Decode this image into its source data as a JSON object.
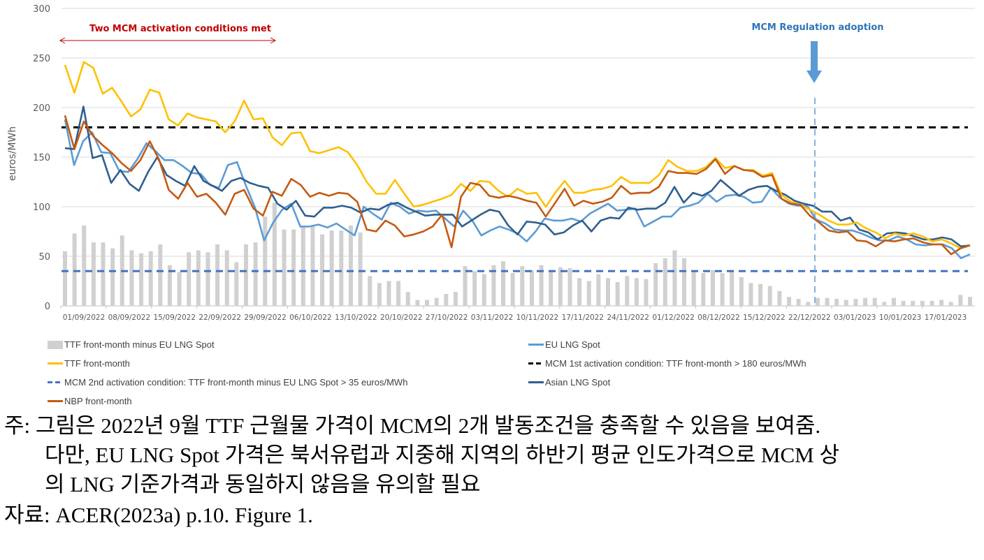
{
  "chart_data": {
    "type": "line",
    "title": "",
    "ylabel": "euros/MWh",
    "xlabel": "",
    "ylim": [
      0,
      300
    ],
    "yticks": [
      0,
      50,
      100,
      150,
      200,
      250,
      300
    ],
    "grid": true,
    "legend_position": "bottom",
    "x_tick_labels": [
      "01/09/2022",
      "08/09/2022",
      "15/09/2022",
      "22/09/2022",
      "29/09/2022",
      "06/10/2022",
      "13/10/2022",
      "20/10/2022",
      "27/10/2022",
      "03/11/2022",
      "10/11/2022",
      "17/11/2022",
      "24/11/2022",
      "01/12/2022",
      "08/12/2022",
      "15/12/2022",
      "22/12/2022",
      "03/01/2023",
      "10/01/2023",
      "17/01/2023"
    ],
    "annotations": [
      {
        "text": "Two MCM activation conditions met",
        "type": "double-arrow",
        "color": "#c00000",
        "x_start": "01/09/2022",
        "x_end": "03/10/2022"
      },
      {
        "text": "MCM Regulation adoption",
        "type": "down-arrow + vertical dashed line",
        "color": "#2e75b6",
        "x": "19/12/2022"
      }
    ],
    "reference_lines": [
      {
        "name": "MCM 1st activation condition: TTF front-month > 180 euros/MWh",
        "y": 180,
        "color": "#000000",
        "style": "dashed"
      },
      {
        "name": "MCM 2nd activation condition: TTF front-month minus EU LNG Spot > 35 euros/MWh",
        "y": 35,
        "color": "#4472c4",
        "style": "dashed"
      }
    ],
    "series": [
      {
        "name": "TTF front-month",
        "color": "#ffc000",
        "type": "line",
        "values": [
          243,
          215,
          246,
          240,
          214,
          220,
          206,
          191,
          198,
          218,
          215,
          188,
          182,
          194,
          190,
          188,
          186,
          175,
          186,
          207,
          188,
          189,
          170,
          162,
          174,
          175,
          156,
          154,
          157,
          160,
          155,
          142,
          125,
          113,
          113,
          127,
          113,
          100,
          102,
          105,
          108,
          112,
          123,
          116,
          126,
          125,
          116,
          110,
          118,
          113,
          114,
          100,
          114,
          126,
          114,
          114,
          117,
          118,
          121,
          130,
          124,
          124,
          124,
          132,
          147,
          140,
          136,
          136,
          140,
          149,
          139,
          141,
          137,
          137,
          131,
          134,
          112,
          105,
          102,
          97,
          92,
          86,
          82,
          82,
          84,
          78,
          74,
          68,
          73,
          71,
          73,
          70,
          65,
          67,
          63,
          58,
          61
        ]
      },
      {
        "name": "EU LNG Spot",
        "color": "#5b9bd5",
        "type": "line",
        "values": [
          188,
          142,
          166,
          175,
          155,
          154,
          136,
          135,
          148,
          164,
          156,
          147,
          147,
          141,
          134,
          133,
          122,
          119,
          142,
          145,
          121,
          99,
          66,
          84,
          97,
          103,
          80,
          80,
          82,
          79,
          83,
          77,
          71,
          100,
          93,
          87,
          104,
          100,
          93,
          96,
          95,
          96,
          88,
          80,
          96,
          86,
          71,
          76,
          80,
          77,
          73,
          65,
          75,
          88,
          86,
          86,
          88,
          85,
          93,
          98,
          103,
          96,
          97,
          98,
          80,
          85,
          90,
          90,
          99,
          101,
          104,
          113,
          105,
          111,
          112,
          110,
          104,
          105,
          119,
          109,
          103,
          101,
          101,
          87,
          83,
          77,
          76,
          76,
          73,
          69,
          66,
          66,
          70,
          67,
          62,
          61,
          62,
          62,
          58,
          48,
          52
        ]
      },
      {
        "name": "Asian LNG Spot",
        "color": "#2f5f8f",
        "type": "line",
        "values": [
          159,
          158,
          201,
          149,
          152,
          124,
          137,
          123,
          116,
          135,
          150,
          132,
          126,
          121,
          141,
          126,
          121,
          116,
          126,
          129,
          124,
          121,
          119,
          103,
          97,
          106,
          91,
          90,
          99,
          99,
          101,
          99,
          94,
          98,
          97,
          102,
          104,
          99,
          95,
          91,
          92,
          92,
          92,
          80,
          86,
          92,
          97,
          95,
          81,
          72,
          85,
          84,
          82,
          72,
          74,
          81,
          86,
          75,
          86,
          89,
          88,
          99,
          97,
          98,
          98,
          104,
          120,
          104,
          114,
          111,
          116,
          127,
          119,
          111,
          117,
          120,
          121,
          116,
          112,
          106,
          103,
          101,
          95,
          95,
          86,
          89,
          77,
          74,
          67,
          73,
          74,
          73,
          70,
          67,
          67,
          69,
          67,
          60,
          61
        ]
      },
      {
        "name": "NBP front-month",
        "color": "#c55a11",
        "type": "line",
        "values": [
          192,
          158,
          186,
          171,
          162,
          154,
          144,
          136,
          147,
          166,
          147,
          117,
          108,
          124,
          110,
          113,
          104,
          92,
          113,
          117,
          98,
          91,
          115,
          111,
          128,
          122,
          110,
          114,
          111,
          114,
          113,
          105,
          77,
          75,
          86,
          81,
          70,
          72,
          75,
          80,
          92,
          59,
          110,
          124,
          122,
          111,
          109,
          111,
          109,
          106,
          104,
          90,
          104,
          118,
          101,
          106,
          103,
          105,
          109,
          121,
          113,
          114,
          114,
          120,
          136,
          134,
          134,
          133,
          138,
          148,
          133,
          141,
          137,
          136,
          130,
          132,
          108,
          103,
          102,
          91,
          84,
          76,
          74,
          75,
          66,
          65,
          60,
          66,
          65,
          67,
          68,
          64,
          62,
          62,
          52,
          58,
          61
        ]
      },
      {
        "name": "TTF front-month minus EU LNG Spot",
        "color": "#d0d0d0",
        "type": "bar",
        "values": [
          55,
          73,
          81,
          64,
          64,
          58,
          71,
          56,
          53,
          55,
          62,
          41,
          34,
          54,
          56,
          54,
          62,
          56,
          44,
          62,
          64,
          90,
          104,
          77,
          77,
          80,
          81,
          72,
          76,
          76,
          81,
          74,
          30,
          23,
          25,
          25,
          14,
          6,
          6,
          8,
          12,
          14,
          40,
          35,
          32,
          41,
          45,
          33,
          40,
          36,
          41,
          35,
          39,
          38,
          28,
          25,
          32,
          28,
          24,
          30,
          28,
          27,
          43,
          48,
          56,
          48,
          36,
          33,
          36,
          33,
          36,
          29,
          23,
          22,
          20,
          15,
          9,
          7,
          4,
          8,
          8,
          7,
          6,
          7,
          8,
          8,
          4,
          8,
          5,
          5,
          5,
          5,
          6,
          4,
          11,
          9
        ]
      }
    ]
  },
  "plot": {
    "y_axis_label": "euros/MWh",
    "annotation_left": "Two MCM activation conditions met",
    "annotation_right": "MCM Regulation adoption"
  },
  "legend": {
    "items": [
      {
        "label": "TTF front-month minus EU LNG  Spot",
        "kind": "bar",
        "color": "#d0d0d0"
      },
      {
        "label": "EU LNG Spot",
        "kind": "line",
        "color": "#5b9bd5"
      },
      {
        "label": "TTF front-month",
        "kind": "line",
        "color": "#ffc000"
      },
      {
        "label": "MCM 1st activation condition: TTF front-month > 180 euros/MWh",
        "kind": "dash",
        "color": "#000000"
      },
      {
        "label": "MCM 2nd activation condition: TTF front-month minus EU LNG Spot > 35 euros/MWh",
        "kind": "dash",
        "color": "#4472c4"
      },
      {
        "label": "Asian LNG Spot",
        "kind": "line",
        "color": "#2f5f8f"
      },
      {
        "label": "NBP front-month",
        "kind": "line",
        "color": "#c55a11"
      }
    ]
  },
  "notes": {
    "line1": "주: 그림은 2022년 9월 TTF 근월물 가격이 MCM의 2개 발동조건을 충족할 수 있음을 보여줌.",
    "line2": "다만, EU LNG Spot 가격은 북서유럽과 지중해 지역의 하반기 평균 인도가격으로 MCM 상",
    "line3": "의 LNG 기준가격과 동일하지 않음을 유의할 필요",
    "source": "자료: ACER(2023a) p.10. Figure 1."
  }
}
